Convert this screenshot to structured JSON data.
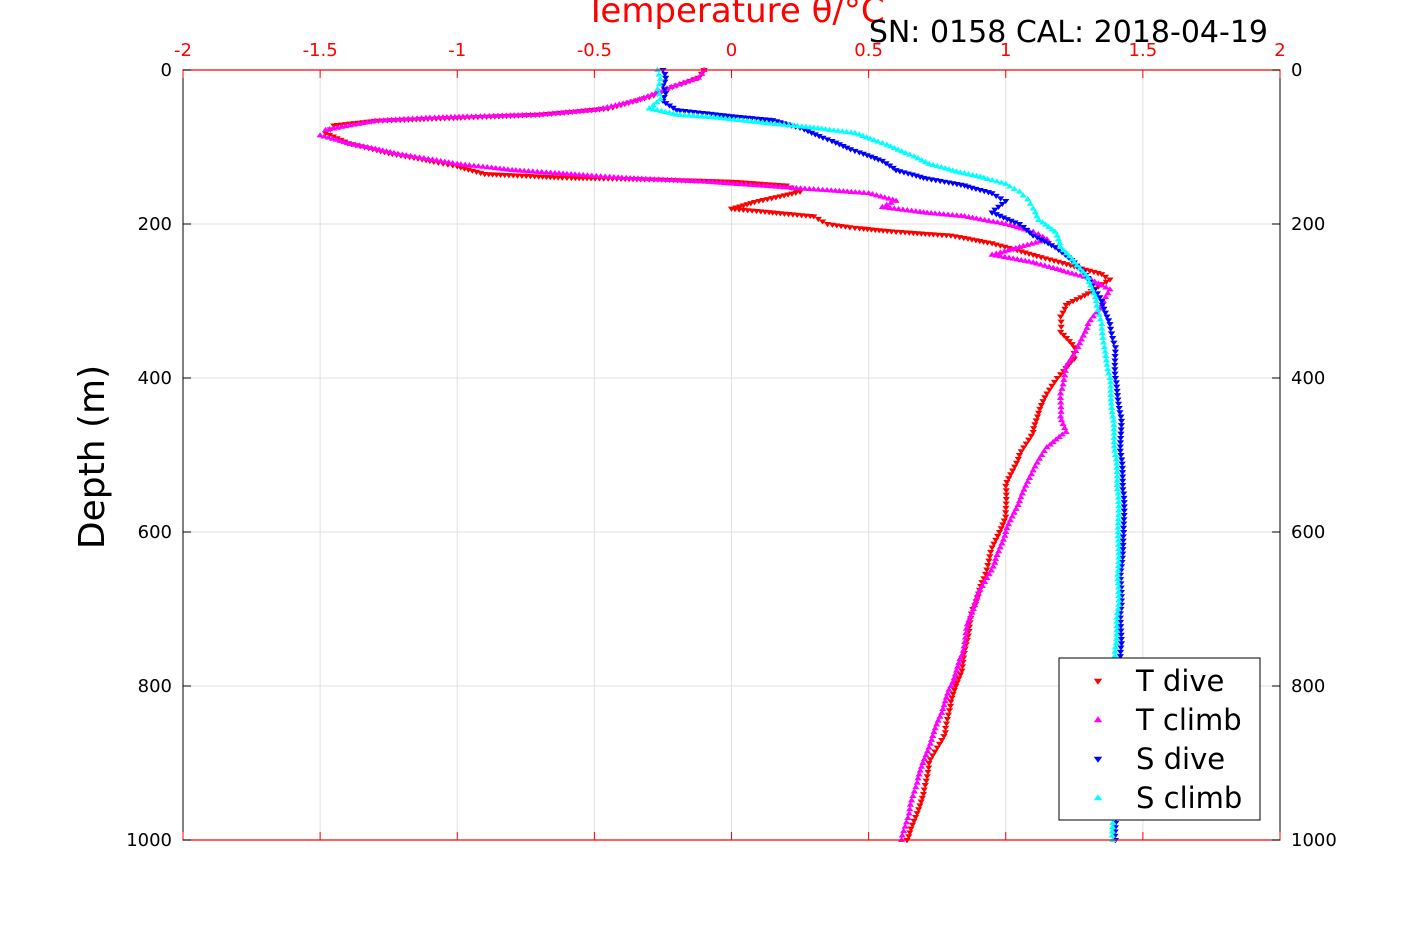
{
  "chart_data": {
    "type": "scatter",
    "title": "Temperature θ/°C",
    "annotation": "SN: 0158  CAL: 2018-04-19",
    "ylabel": "Depth (m)",
    "xlabel": "",
    "xlim": [
      -2,
      2
    ],
    "ylim": [
      0,
      1000
    ],
    "y_inverted": true,
    "x_ticks": [
      "-2",
      "-1.5",
      "-1",
      "-0.5",
      "0",
      "0.5",
      "1",
      "1.5",
      "2"
    ],
    "x_tick_values": [
      -2,
      -1.5,
      -1,
      -0.5,
      0,
      0.5,
      1,
      1.5,
      2
    ],
    "y_ticks": [
      "0",
      "200",
      "400",
      "600",
      "800",
      "1000"
    ],
    "y_tick_values": [
      0,
      200,
      400,
      600,
      800,
      1000
    ],
    "grid": true,
    "legend_position": "bottom-right",
    "series": [
      {
        "name": "T dive",
        "color": "#ff0000",
        "marker": "triangle-down",
        "points": [
          [
            -0.1,
            0
          ],
          [
            -0.12,
            10
          ],
          [
            -0.2,
            20
          ],
          [
            -0.3,
            35
          ],
          [
            -0.45,
            50
          ],
          [
            -0.7,
            58
          ],
          [
            -1.0,
            62
          ],
          [
            -1.3,
            66
          ],
          [
            -1.45,
            72
          ],
          [
            -1.48,
            82
          ],
          [
            -1.4,
            95
          ],
          [
            -1.25,
            108
          ],
          [
            -1.1,
            118
          ],
          [
            -1.0,
            125
          ],
          [
            -0.9,
            135
          ],
          [
            -0.6,
            140
          ],
          [
            -0.3,
            142
          ],
          [
            0.0,
            145
          ],
          [
            0.2,
            150
          ],
          [
            0.25,
            158
          ],
          [
            0.1,
            170
          ],
          [
            0.0,
            180
          ],
          [
            0.15,
            185
          ],
          [
            0.3,
            190
          ],
          [
            0.35,
            200
          ],
          [
            0.45,
            205
          ],
          [
            0.6,
            210
          ],
          [
            0.8,
            215
          ],
          [
            0.95,
            225
          ],
          [
            1.1,
            240
          ],
          [
            1.25,
            255
          ],
          [
            1.35,
            265
          ],
          [
            1.38,
            272
          ],
          [
            1.3,
            290
          ],
          [
            1.22,
            305
          ],
          [
            1.2,
            320
          ],
          [
            1.2,
            340
          ],
          [
            1.25,
            360
          ],
          [
            1.25,
            375
          ],
          [
            1.2,
            395
          ],
          [
            1.15,
            420
          ],
          [
            1.12,
            445
          ],
          [
            1.1,
            470
          ],
          [
            1.05,
            500
          ],
          [
            1.0,
            540
          ],
          [
            1.0,
            580
          ],
          [
            0.95,
            620
          ],
          [
            0.92,
            660
          ],
          [
            0.88,
            700
          ],
          [
            0.86,
            740
          ],
          [
            0.84,
            780
          ],
          [
            0.8,
            820
          ],
          [
            0.78,
            860
          ],
          [
            0.72,
            900
          ],
          [
            0.7,
            940
          ],
          [
            0.66,
            980
          ],
          [
            0.64,
            1000
          ]
        ]
      },
      {
        "name": "T climb",
        "color": "#ff00ff",
        "marker": "triangle-up",
        "points": [
          [
            -0.1,
            0
          ],
          [
            -0.12,
            10
          ],
          [
            -0.22,
            22
          ],
          [
            -0.35,
            40
          ],
          [
            -0.5,
            52
          ],
          [
            -0.7,
            58
          ],
          [
            -0.9,
            60
          ],
          [
            -1.1,
            62
          ],
          [
            -1.3,
            66
          ],
          [
            -1.48,
            78
          ],
          [
            -1.5,
            85
          ],
          [
            -1.4,
            95
          ],
          [
            -1.2,
            110
          ],
          [
            -1.0,
            122
          ],
          [
            -0.8,
            130
          ],
          [
            -0.6,
            135
          ],
          [
            -0.4,
            140
          ],
          [
            -0.1,
            145
          ],
          [
            0.1,
            150
          ],
          [
            0.3,
            155
          ],
          [
            0.5,
            160
          ],
          [
            0.6,
            170
          ],
          [
            0.55,
            178
          ],
          [
            0.7,
            185
          ],
          [
            0.85,
            190
          ],
          [
            1.0,
            200
          ],
          [
            1.1,
            210
          ],
          [
            1.15,
            220
          ],
          [
            1.05,
            230
          ],
          [
            0.95,
            240
          ],
          [
            1.1,
            250
          ],
          [
            1.2,
            260
          ],
          [
            1.3,
            270
          ],
          [
            1.38,
            285
          ],
          [
            1.35,
            305
          ],
          [
            1.3,
            330
          ],
          [
            1.27,
            355
          ],
          [
            1.22,
            385
          ],
          [
            1.2,
            420
          ],
          [
            1.2,
            450
          ],
          [
            1.22,
            470
          ],
          [
            1.15,
            490
          ],
          [
            1.1,
            520
          ],
          [
            1.05,
            560
          ],
          [
            1.0,
            600
          ],
          [
            0.96,
            640
          ],
          [
            0.9,
            680
          ],
          [
            0.86,
            720
          ],
          [
            0.84,
            760
          ],
          [
            0.8,
            800
          ],
          [
            0.76,
            840
          ],
          [
            0.72,
            880
          ],
          [
            0.68,
            920
          ],
          [
            0.65,
            960
          ],
          [
            0.62,
            1000
          ]
        ]
      },
      {
        "name": "S dive",
        "color": "#0000ff",
        "marker": "triangle-down",
        "points": [
          [
            -0.25,
            0
          ],
          [
            -0.24,
            10
          ],
          [
            -0.25,
            20
          ],
          [
            -0.24,
            30
          ],
          [
            -0.25,
            40
          ],
          [
            -0.2,
            52
          ],
          [
            0.0,
            60
          ],
          [
            0.15,
            65
          ],
          [
            0.25,
            75
          ],
          [
            0.35,
            90
          ],
          [
            0.45,
            105
          ],
          [
            0.55,
            118
          ],
          [
            0.6,
            130
          ],
          [
            0.7,
            140
          ],
          [
            0.85,
            150
          ],
          [
            0.95,
            160
          ],
          [
            1.0,
            170
          ],
          [
            0.95,
            185
          ],
          [
            1.05,
            200
          ],
          [
            1.1,
            215
          ],
          [
            1.18,
            230
          ],
          [
            1.25,
            250
          ],
          [
            1.3,
            270
          ],
          [
            1.35,
            300
          ],
          [
            1.38,
            330
          ],
          [
            1.4,
            360
          ],
          [
            1.4,
            400
          ],
          [
            1.42,
            450
          ],
          [
            1.42,
            500
          ],
          [
            1.43,
            550
          ],
          [
            1.43,
            600
          ],
          [
            1.42,
            650
          ],
          [
            1.42,
            700
          ],
          [
            1.42,
            750
          ],
          [
            1.42,
            800
          ],
          [
            1.41,
            850
          ],
          [
            1.41,
            900
          ],
          [
            1.4,
            950
          ],
          [
            1.4,
            1000
          ]
        ]
      },
      {
        "name": "S climb",
        "color": "#00ffff",
        "marker": "triangle-up",
        "points": [
          [
            -0.27,
            0
          ],
          [
            -0.26,
            12
          ],
          [
            -0.27,
            25
          ],
          [
            -0.26,
            38
          ],
          [
            -0.3,
            50
          ],
          [
            -0.2,
            58
          ],
          [
            -0.05,
            62
          ],
          [
            0.1,
            68
          ],
          [
            0.3,
            75
          ],
          [
            0.45,
            82
          ],
          [
            0.55,
            95
          ],
          [
            0.65,
            110
          ],
          [
            0.72,
            122
          ],
          [
            0.82,
            132
          ],
          [
            0.92,
            140
          ],
          [
            1.0,
            148
          ],
          [
            1.05,
            158
          ],
          [
            1.08,
            168
          ],
          [
            1.1,
            180
          ],
          [
            1.12,
            195
          ],
          [
            1.18,
            210
          ],
          [
            1.2,
            230
          ],
          [
            1.25,
            250
          ],
          [
            1.3,
            270
          ],
          [
            1.33,
            300
          ],
          [
            1.35,
            330
          ],
          [
            1.36,
            360
          ],
          [
            1.38,
            400
          ],
          [
            1.39,
            450
          ],
          [
            1.4,
            500
          ],
          [
            1.41,
            550
          ],
          [
            1.41,
            600
          ],
          [
            1.41,
            650
          ],
          [
            1.41,
            700
          ],
          [
            1.4,
            750
          ],
          [
            1.4,
            800
          ],
          [
            1.4,
            850
          ],
          [
            1.39,
            900
          ],
          [
            1.39,
            950
          ],
          [
            1.39,
            1000
          ]
        ]
      }
    ]
  }
}
